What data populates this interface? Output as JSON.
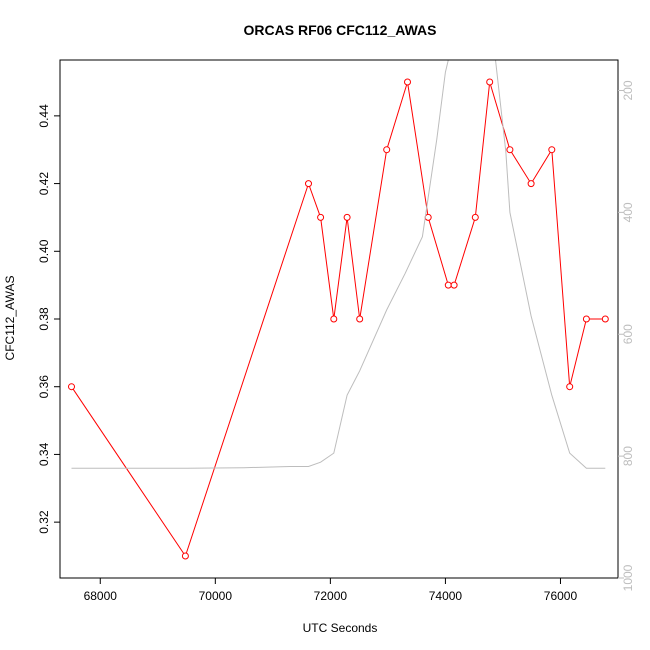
{
  "chart_data": {
    "type": "line",
    "title": "ORCAS RF06 CFC112_AWAS",
    "xlabel": "UTC Seconds",
    "ylabel": "CFC112_AWAS",
    "xlim": [
      67300,
      77000
    ],
    "ylim": [
      0.3035,
      0.4565
    ],
    "y2lim": [
      1000,
      150
    ],
    "x_ticks": [
      68000,
      70000,
      72000,
      74000,
      76000
    ],
    "y_ticks": [
      0.32,
      0.34,
      0.36,
      0.38,
      0.4,
      0.42,
      0.44
    ],
    "y2_ticks": [
      200,
      400,
      600,
      800,
      1000
    ],
    "grid": false,
    "series": [
      {
        "color": "#ff0000",
        "x": [
          67500,
          69480,
          71620,
          71830,
          72060,
          72290,
          72510,
          72980,
          73340,
          73700,
          74050,
          74150,
          74520,
          74770,
          75120,
          75490,
          75850,
          76160,
          76450,
          76780
        ],
        "y": [
          0.36,
          0.31,
          0.42,
          0.41,
          0.38,
          0.41,
          0.38,
          0.43,
          0.45,
          0.41,
          0.39,
          0.39,
          0.41,
          0.45,
          0.43,
          0.42,
          0.43,
          0.36,
          0.38,
          0.38
        ]
      },
      {
        "color": "#bdbdbd",
        "axis": "right",
        "x": [
          67500,
          68500,
          69500,
          70500,
          71300,
          71620,
          71830,
          72060,
          72290,
          72510,
          72980,
          73300,
          73600,
          73850,
          74000,
          74150,
          74400,
          74770,
          74870,
          75050,
          75120,
          75490,
          75850,
          76160,
          76450,
          76780
        ],
        "y": [
          820,
          820,
          820,
          819,
          817,
          817,
          810,
          795,
          700,
          660,
          560,
          500,
          440,
          280,
          170,
          110,
          80,
          100,
          150,
          300,
          400,
          570,
          700,
          795,
          820,
          820
        ]
      }
    ]
  }
}
